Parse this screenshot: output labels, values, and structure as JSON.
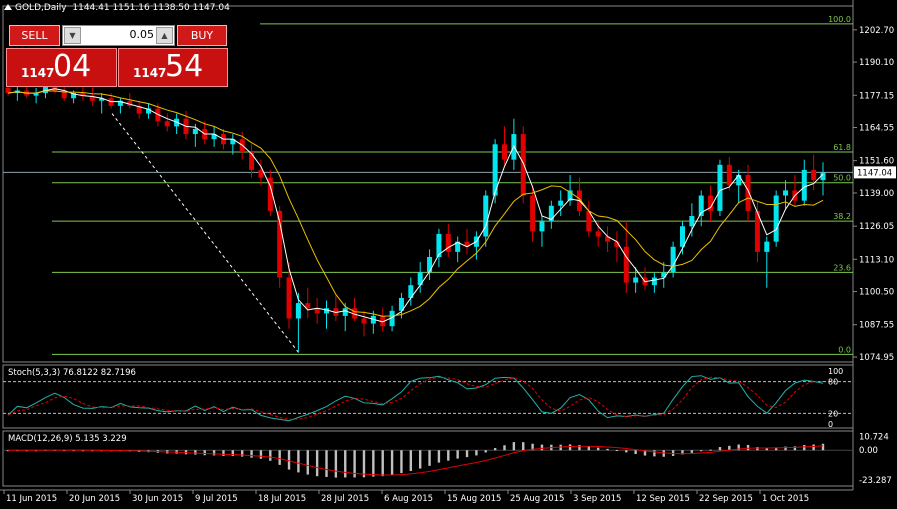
{
  "chart_header": {
    "symbol": "GOLD,Daily",
    "ohlc": "1144.41 1151.16 1138.50 1147.04"
  },
  "trade_panel": {
    "sell_label": "SELL",
    "buy_label": "BUY",
    "lot": "0.05",
    "sell_price_small": "1147",
    "sell_price_big": "04",
    "buy_price_small": "1147",
    "buy_price_big": "54"
  },
  "price_axis": [
    "1202.70",
    "1190.10",
    "1177.15",
    "1164.55",
    "1151.60",
    "1139.00",
    "1126.05",
    "1113.10",
    "1100.50",
    "1087.55",
    "1074.95"
  ],
  "current_price": "1147.04",
  "fib_levels": [
    "100.0",
    "61.8",
    "50.0",
    "38.2",
    "23.6",
    "0.0"
  ],
  "stoch": {
    "label": "Stoch(5,3,3) 76.8122 82.7196",
    "axis": [
      "100",
      "80",
      "20",
      "0"
    ]
  },
  "macd": {
    "label": "MACD(12,26,9) 5.135 3.229",
    "axis": [
      "10.724",
      "0.00",
      "-23.287"
    ]
  },
  "date_axis": [
    "11 Jun 2015",
    "20 Jun 2015",
    "30 Jun 2015",
    "9 Jul 2015",
    "18 Jul 2015",
    "28 Jul 2015",
    "6 Aug 2015",
    "15 Aug 2015",
    "25 Aug 2015",
    "3 Sep 2015",
    "12 Sep 2015",
    "22 Sep 2015",
    "1 Oct 2015"
  ],
  "colors": {
    "up": "#00e5ee",
    "down": "#e00000",
    "fib": "#7ec850",
    "ma_fast": "#ffffff",
    "ma_slow": "#e8c000",
    "stoch_main": "#20b2aa",
    "stoch_signal": "#e00000",
    "macd_hist": "#c0c0c0",
    "macd_signal": "#e00000"
  },
  "chart_data": {
    "type": "candlestick",
    "ohlc": [
      [
        1180,
        1183,
        1177,
        1178
      ],
      [
        1178,
        1181,
        1175,
        1179
      ],
      [
        1179,
        1182,
        1176,
        1177
      ],
      [
        1177,
        1180,
        1174,
        1178
      ],
      [
        1178,
        1184,
        1176,
        1182
      ],
      [
        1182,
        1184,
        1178,
        1179
      ],
      [
        1179,
        1181,
        1175,
        1176
      ],
      [
        1176,
        1179,
        1174,
        1178
      ],
      [
        1178,
        1182,
        1175,
        1177
      ],
      [
        1177,
        1180,
        1173,
        1175
      ],
      [
        1175,
        1178,
        1170,
        1176
      ],
      [
        1176,
        1178,
        1172,
        1173
      ],
      [
        1173,
        1176,
        1170,
        1175
      ],
      [
        1175,
        1178,
        1172,
        1173
      ],
      [
        1173,
        1175,
        1168,
        1170
      ],
      [
        1170,
        1174,
        1168,
        1172
      ],
      [
        1172,
        1174,
        1165,
        1167
      ],
      [
        1167,
        1170,
        1163,
        1165
      ],
      [
        1165,
        1170,
        1162,
        1168
      ],
      [
        1168,
        1171,
        1160,
        1162
      ],
      [
        1162,
        1166,
        1157,
        1164
      ],
      [
        1164,
        1167,
        1158,
        1160
      ],
      [
        1160,
        1165,
        1157,
        1162
      ],
      [
        1162,
        1164,
        1156,
        1158
      ],
      [
        1158,
        1162,
        1154,
        1160
      ],
      [
        1160,
        1163,
        1152,
        1155
      ],
      [
        1155,
        1158,
        1145,
        1148
      ],
      [
        1148,
        1152,
        1142,
        1145
      ],
      [
        1145,
        1148,
        1130,
        1132
      ],
      [
        1132,
        1134,
        1102,
        1106
      ],
      [
        1106,
        1112,
        1086,
        1090
      ],
      [
        1090,
        1100,
        1077,
        1096
      ],
      [
        1096,
        1102,
        1090,
        1094
      ],
      [
        1094,
        1098,
        1088,
        1092
      ],
      [
        1092,
        1097,
        1086,
        1094
      ],
      [
        1094,
        1099,
        1089,
        1091
      ],
      [
        1091,
        1096,
        1085,
        1094
      ],
      [
        1094,
        1098,
        1089,
        1090
      ],
      [
        1090,
        1093,
        1083,
        1088
      ],
      [
        1088,
        1093,
        1084,
        1091
      ],
      [
        1091,
        1094,
        1085,
        1087
      ],
      [
        1087,
        1095,
        1085,
        1093
      ],
      [
        1093,
        1100,
        1090,
        1098
      ],
      [
        1098,
        1106,
        1095,
        1103
      ],
      [
        1103,
        1112,
        1100,
        1108
      ],
      [
        1108,
        1117,
        1105,
        1114
      ],
      [
        1114,
        1125,
        1110,
        1123
      ],
      [
        1123,
        1127,
        1114,
        1116
      ],
      [
        1116,
        1122,
        1112,
        1120
      ],
      [
        1120,
        1125,
        1115,
        1118
      ],
      [
        1118,
        1124,
        1113,
        1122
      ],
      [
        1122,
        1140,
        1118,
        1138
      ],
      [
        1138,
        1160,
        1135,
        1158
      ],
      [
        1158,
        1165,
        1150,
        1152
      ],
      [
        1152,
        1168,
        1148,
        1162
      ],
      [
        1162,
        1165,
        1135,
        1138
      ],
      [
        1138,
        1142,
        1120,
        1124
      ],
      [
        1124,
        1130,
        1118,
        1128
      ],
      [
        1128,
        1136,
        1125,
        1134
      ],
      [
        1134,
        1140,
        1130,
        1136
      ],
      [
        1136,
        1146,
        1134,
        1140
      ],
      [
        1140,
        1145,
        1130,
        1132
      ],
      [
        1132,
        1136,
        1122,
        1124
      ],
      [
        1124,
        1128,
        1118,
        1122
      ],
      [
        1122,
        1126,
        1116,
        1120
      ],
      [
        1120,
        1124,
        1112,
        1118
      ],
      [
        1118,
        1128,
        1100,
        1104
      ],
      [
        1104,
        1110,
        1100,
        1106
      ],
      [
        1106,
        1110,
        1101,
        1103
      ],
      [
        1103,
        1108,
        1100,
        1106
      ],
      [
        1106,
        1112,
        1102,
        1108
      ],
      [
        1108,
        1120,
        1106,
        1118
      ],
      [
        1118,
        1128,
        1115,
        1126
      ],
      [
        1126,
        1135,
        1122,
        1130
      ],
      [
        1130,
        1140,
        1126,
        1138
      ],
      [
        1138,
        1142,
        1128,
        1132
      ],
      [
        1132,
        1152,
        1130,
        1150
      ],
      [
        1150,
        1153,
        1140,
        1142
      ],
      [
        1142,
        1148,
        1135,
        1146
      ],
      [
        1146,
        1150,
        1128,
        1132
      ],
      [
        1132,
        1136,
        1112,
        1116
      ],
      [
        1116,
        1122,
        1102,
        1120
      ],
      [
        1120,
        1140,
        1118,
        1138
      ],
      [
        1138,
        1144,
        1133,
        1140
      ],
      [
        1140,
        1146,
        1134,
        1136
      ],
      [
        1136,
        1152,
        1134,
        1148
      ],
      [
        1148,
        1154,
        1140,
        1144
      ],
      [
        1144,
        1151,
        1138,
        1147
      ]
    ]
  }
}
